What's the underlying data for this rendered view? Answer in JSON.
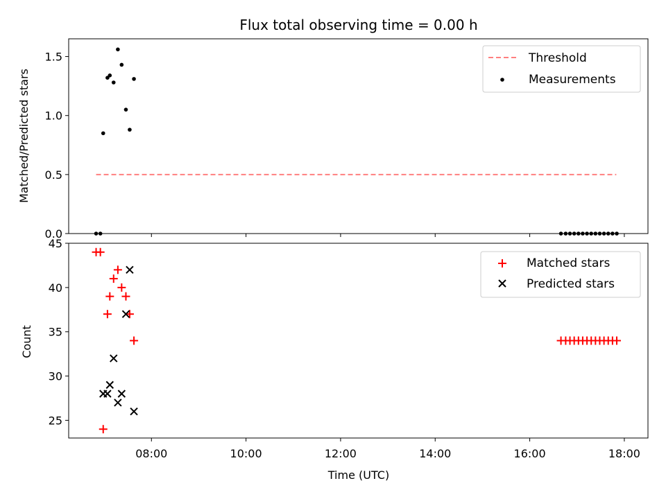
{
  "chart_data": {
    "type": "scatter",
    "title": "Flux total observing time = 0.00 h",
    "xlabel": "Time (UTC)",
    "xlim": [
      6.25,
      18.5
    ],
    "xticks": [
      8,
      10,
      12,
      14,
      16,
      18
    ],
    "xtick_labels": [
      "08:00",
      "10:00",
      "12:00",
      "14:00",
      "16:00",
      "18:00"
    ],
    "panels": [
      {
        "name": "ratio",
        "ylabel": "Matched/Predicted stars",
        "ylim": [
          0,
          1.65
        ],
        "yticks": [
          0.0,
          0.5,
          1.0,
          1.5
        ],
        "ytick_labels": [
          "0.0",
          "0.5",
          "1.0",
          "1.5"
        ],
        "legend_position": "top-right",
        "series": [
          {
            "name": "Threshold",
            "kind": "dashed-line",
            "color": "#ff7f7f",
            "x": [
              6.83,
              17.83
            ],
            "y": [
              0.5,
              0.5
            ]
          },
          {
            "name": "Measurements",
            "kind": "dot",
            "color": "#000000",
            "x": [
              6.83,
              6.92,
              6.98,
              7.07,
              7.12,
              7.2,
              7.29,
              7.37,
              7.46,
              7.54,
              7.63,
              16.66,
              16.76,
              16.85,
              16.94,
              17.03,
              17.12,
              17.21,
              17.3,
              17.39,
              17.48,
              17.57,
              17.66,
              17.75,
              17.84
            ],
            "y": [
              0.0,
              0.0,
              0.85,
              1.32,
              1.34,
              1.28,
              1.56,
              1.43,
              1.05,
              0.88,
              1.31,
              0,
              0,
              0,
              0,
              0,
              0,
              0,
              0,
              0,
              0,
              0,
              0,
              0,
              0
            ]
          }
        ]
      },
      {
        "name": "count",
        "ylabel": "Count",
        "ylim": [
          23,
          45
        ],
        "yticks": [
          25,
          30,
          35,
          40,
          45
        ],
        "ytick_labels": [
          "25",
          "30",
          "35",
          "40",
          "45"
        ],
        "legend_position": "top-right",
        "series": [
          {
            "name": "Matched stars",
            "kind": "plus",
            "color": "#ff0000",
            "x": [
              6.83,
              6.92,
              6.98,
              7.07,
              7.12,
              7.2,
              7.29,
              7.37,
              7.46,
              7.54,
              7.63,
              16.66,
              16.76,
              16.85,
              16.94,
              17.03,
              17.12,
              17.21,
              17.3,
              17.39,
              17.48,
              17.57,
              17.66,
              17.75,
              17.84
            ],
            "y": [
              44,
              44,
              24,
              37,
              39,
              41,
              42,
              40,
              39,
              37,
              34,
              34,
              34,
              34,
              34,
              34,
              34,
              34,
              34,
              34,
              34,
              34,
              34,
              34,
              34
            ]
          },
          {
            "name": "Predicted stars",
            "kind": "cross",
            "color": "#000000",
            "x": [
              6.98,
              7.07,
              7.12,
              7.2,
              7.29,
              7.37,
              7.46,
              7.54,
              7.63
            ],
            "y": [
              28,
              28,
              29,
              32,
              27,
              28,
              37,
              42,
              26
            ]
          }
        ]
      }
    ]
  }
}
